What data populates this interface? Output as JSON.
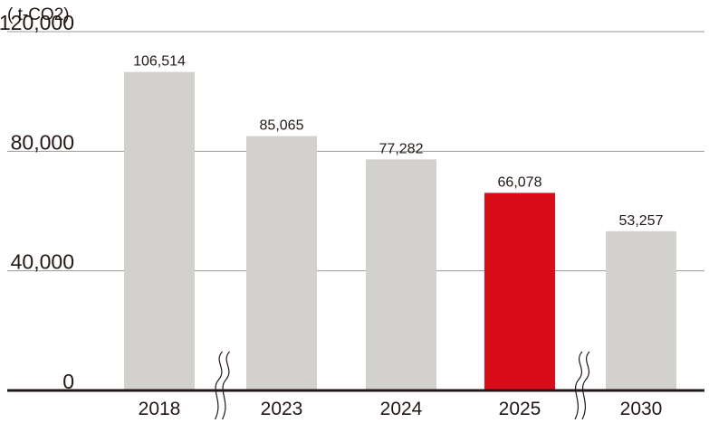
{
  "chart_data": {
    "type": "bar",
    "unit_label": "( t-CO2)",
    "categories": [
      "2018",
      "2023",
      "2024",
      "2025",
      "2030"
    ],
    "values": [
      106514,
      85065,
      77282,
      66078,
      53257
    ],
    "data_labels": [
      "106,514",
      "85,065",
      "77,282",
      "66,078",
      "53,257"
    ],
    "y_ticks": [
      {
        "value": 0,
        "label": "0"
      },
      {
        "value": 40000,
        "label": "40,000"
      },
      {
        "value": 80000,
        "label": "80,000"
      },
      {
        "value": 120000,
        "label": "120,000"
      }
    ],
    "ylim": [
      0,
      120000
    ],
    "grid": true,
    "axis_break_after": [
      "2018",
      "2025"
    ],
    "colors": {
      "bar": "#d2d1cd",
      "highlight": "#d90d1a",
      "highlight_category": "2025",
      "baseline": "#231815",
      "grid": "#9a9a9a"
    }
  }
}
